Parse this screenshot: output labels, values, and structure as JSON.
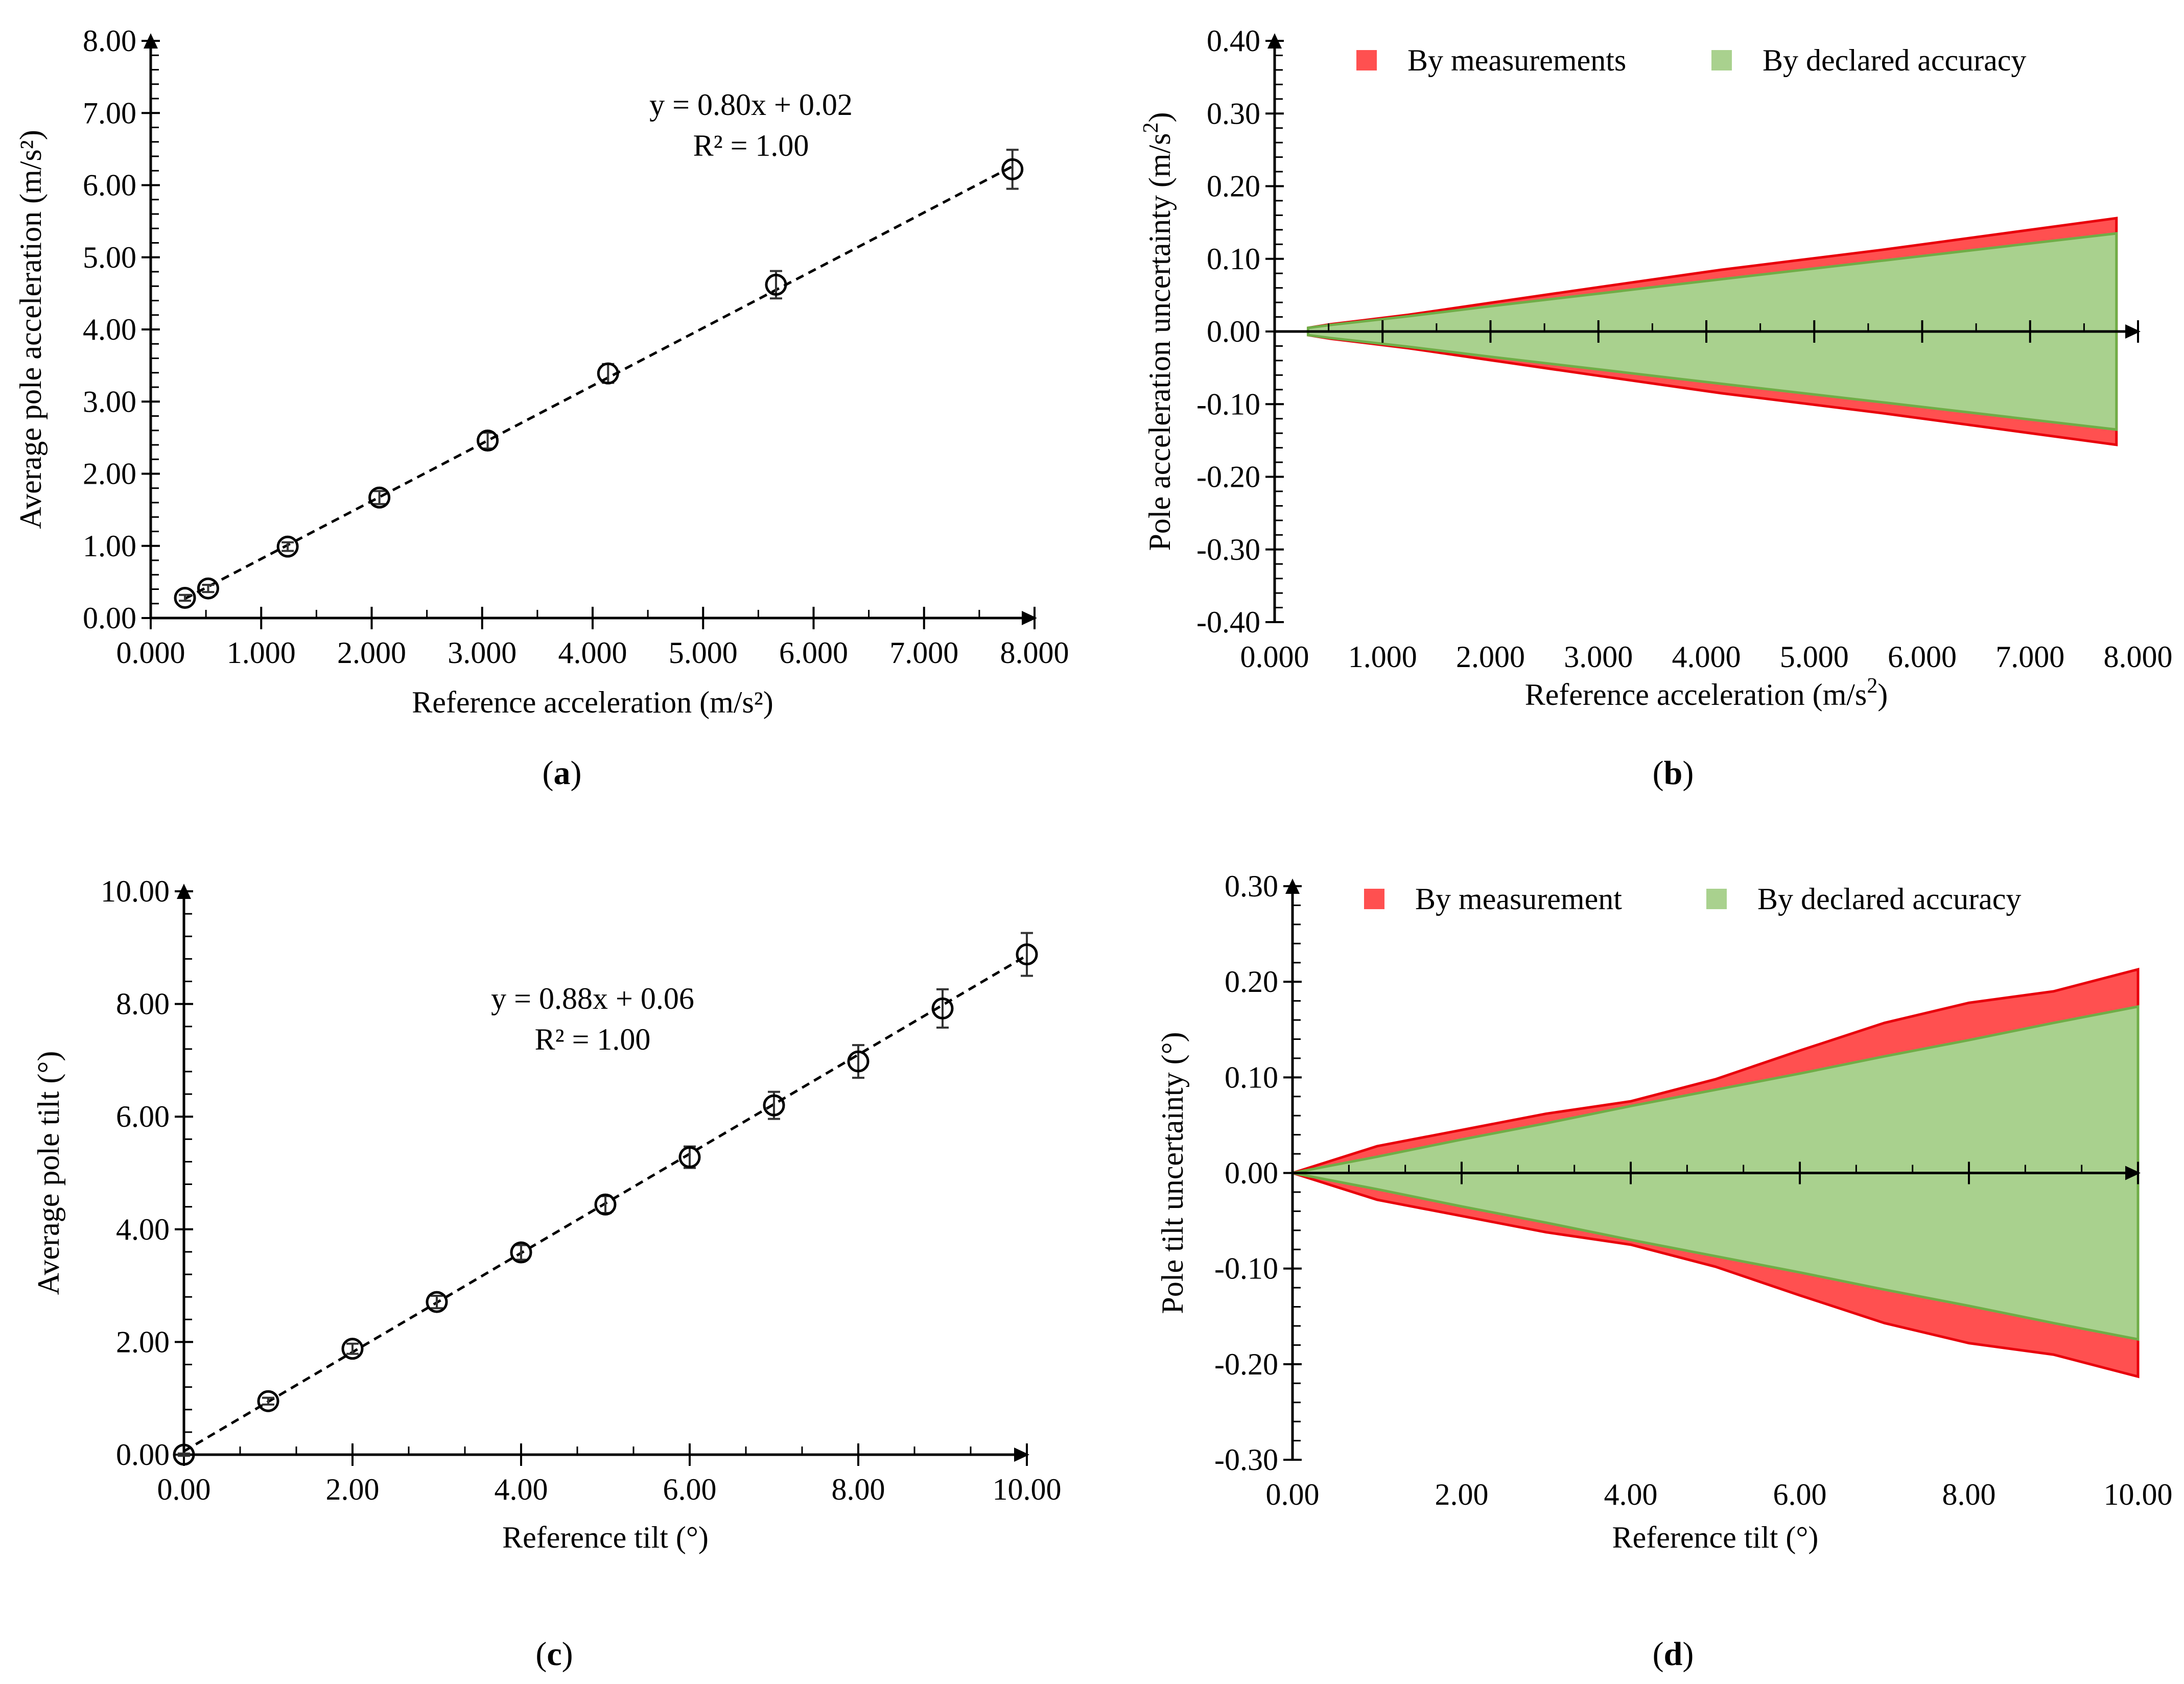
{
  "figure": {
    "colors": {
      "red": "#FF5050",
      "red_line": "#E8000B",
      "green": "#A9D18E",
      "green_line": "#70AD47",
      "axis": "#000000",
      "marker": "#000000"
    }
  },
  "chart_data": [
    {
      "id": "a",
      "type": "scatter",
      "label": "a",
      "xlabel": "Reference acceleration (m/s²)",
      "ylabel": "Average pole acceleration (m/s²)",
      "xlim": [
        0,
        8
      ],
      "ylim": [
        0,
        8
      ],
      "x_ticks": [
        "0.000",
        "1.000",
        "2.000",
        "3.000",
        "4.000",
        "5.000",
        "6.000",
        "7.000",
        "8.000"
      ],
      "y_ticks": [
        "0.00",
        "1.00",
        "2.00",
        "3.00",
        "4.00",
        "5.00",
        "6.00",
        "7.00",
        "8.00"
      ],
      "x": [
        0.31,
        0.52,
        1.24,
        2.07,
        3.05,
        4.14,
        5.66,
        7.8
      ],
      "y": [
        0.28,
        0.41,
        0.99,
        1.67,
        2.46,
        3.39,
        4.62,
        6.22
      ],
      "yerr": [
        0.04,
        0.05,
        0.06,
        0.09,
        0.11,
        0.13,
        0.19,
        0.27
      ],
      "fit": {
        "slope": 0.8,
        "intercept": 0.02,
        "equation": "y = 0.80x + 0.02",
        "r2": "R² = 1.00"
      }
    },
    {
      "id": "b",
      "type": "area",
      "label": "b",
      "xlabel": "Reference acceleration (m/s",
      "xlabel_sup": "2",
      "xlabel_end": ")",
      "ylabel": "Pole acceleration uncertainty (m/s",
      "ylabel_sup": "2",
      "ylabel_end": ")",
      "xlim": [
        0,
        8
      ],
      "ylim": [
        -0.4,
        0.4
      ],
      "x_ticks": [
        "0.000",
        "1.000",
        "2.000",
        "3.000",
        "4.000",
        "5.000",
        "6.000",
        "7.000",
        "8.000"
      ],
      "y_ticks": [
        "-0.40",
        "-0.30",
        "-0.20",
        "-0.10",
        "0.00",
        "0.10",
        "0.20",
        "0.30",
        "0.40"
      ],
      "legend": [
        "By measurements",
        "By declared accuracy"
      ],
      "x": [
        0.31,
        0.52,
        1.24,
        2.07,
        3.05,
        4.14,
        5.66,
        7.8
      ],
      "series": [
        {
          "name": "By measurements",
          "values": [
            0.005,
            0.01,
            0.023,
            0.041,
            0.062,
            0.085,
            0.113,
            0.156
          ]
        },
        {
          "name": "By declared accuracy",
          "values": [
            0.005,
            0.009,
            0.021,
            0.036,
            0.053,
            0.072,
            0.098,
            0.135
          ]
        }
      ]
    },
    {
      "id": "c",
      "type": "scatter",
      "label": "c",
      "xlabel": "Reference tilt (°)",
      "ylabel": "Average pole tilt (°)",
      "xlim": [
        0,
        10
      ],
      "ylim": [
        0,
        10
      ],
      "x_ticks": [
        "0.00",
        "2.00",
        "4.00",
        "6.00",
        "8.00",
        "10.00"
      ],
      "y_ticks": [
        "0.00",
        "2.00",
        "4.00",
        "6.00",
        "8.00",
        "10.00"
      ],
      "x": [
        0,
        1,
        2,
        3,
        4,
        5,
        6,
        7,
        8,
        9,
        10
      ],
      "y": [
        0.0,
        0.95,
        1.88,
        2.71,
        3.59,
        4.44,
        5.28,
        6.2,
        6.98,
        7.92,
        8.88
      ],
      "yerr": [
        0.02,
        0.06,
        0.09,
        0.11,
        0.13,
        0.15,
        0.19,
        0.24,
        0.29,
        0.34,
        0.38
      ],
      "fit": {
        "slope": 0.88,
        "intercept": 0.06,
        "equation": "y = 0.88x + 0.06",
        "r2": "R² = 1.00"
      }
    },
    {
      "id": "d",
      "type": "area",
      "label": "d",
      "xlabel": "Reference tilt (°)",
      "ylabel": "Pole tilt uncertainty (°)",
      "xlim": [
        0,
        10
      ],
      "ylim": [
        -0.3,
        0.3
      ],
      "x_ticks": [
        "0.00",
        "2.00",
        "4.00",
        "6.00",
        "8.00",
        "10.00"
      ],
      "y_ticks": [
        "-0.30",
        "-0.20",
        "-0.10",
        "0.00",
        "0.10",
        "0.20",
        "0.30"
      ],
      "legend": [
        "By measurement",
        "By declared accuracy"
      ],
      "x": [
        0,
        1,
        2,
        3,
        4,
        5,
        6,
        7,
        8,
        9,
        10
      ],
      "series": [
        {
          "name": "By measurement",
          "values": [
            0.0,
            0.028,
            0.045,
            0.062,
            0.075,
            0.098,
            0.128,
            0.157,
            0.178,
            0.19,
            0.213
          ]
        },
        {
          "name": "By declared accuracy",
          "values": [
            0.0,
            0.017,
            0.035,
            0.052,
            0.07,
            0.087,
            0.104,
            0.122,
            0.139,
            0.157,
            0.174
          ]
        }
      ]
    }
  ]
}
